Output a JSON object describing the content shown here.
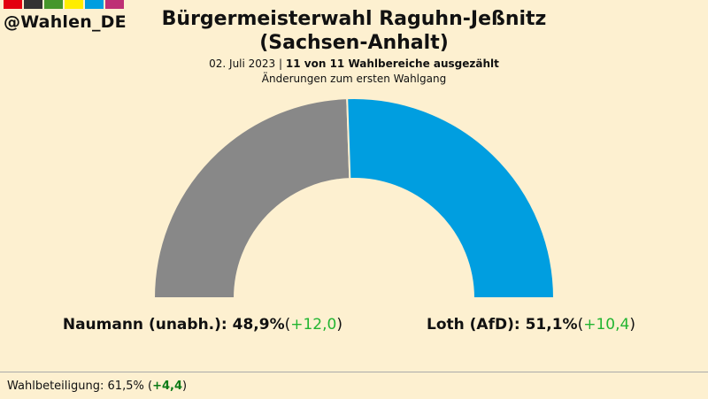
{
  "brand": {
    "handle": "@Wahlen_DE",
    "flag_colors": [
      "#e3000f",
      "#333333",
      "#46962b",
      "#ffed00",
      "#009ee0",
      "#be3075"
    ]
  },
  "header": {
    "title_line1": "Bürgermeisterwahl Raguhn-Jeßnitz",
    "title_line2": "(Sachsen-Anhalt)",
    "date": "02. Juli 2023",
    "separator": "|",
    "counted": "11 von 11 Wahlbereiche ausgezählt",
    "note": "Änderungen zum ersten Wahlgang"
  },
  "chart_data": {
    "type": "pie",
    "variant": "half-donut",
    "title": "Bürgermeisterwahl Raguhn-Jeßnitz (Sachsen-Anhalt)",
    "unit": "%",
    "slices": [
      {
        "name": "Naumann (unabh.)",
        "value": 48.9,
        "value_label": "48,9%",
        "change_label": "+12,0",
        "color": "#888888"
      },
      {
        "name": "Loth (AfD)",
        "value": 51.1,
        "value_label": "51,1%",
        "change_label": "+10,4",
        "color": "#009ee0"
      }
    ]
  },
  "footer": {
    "turnout_label": "Wahlbeteiligung:",
    "turnout_value": "61,5%",
    "turnout_change": "+4,4"
  }
}
